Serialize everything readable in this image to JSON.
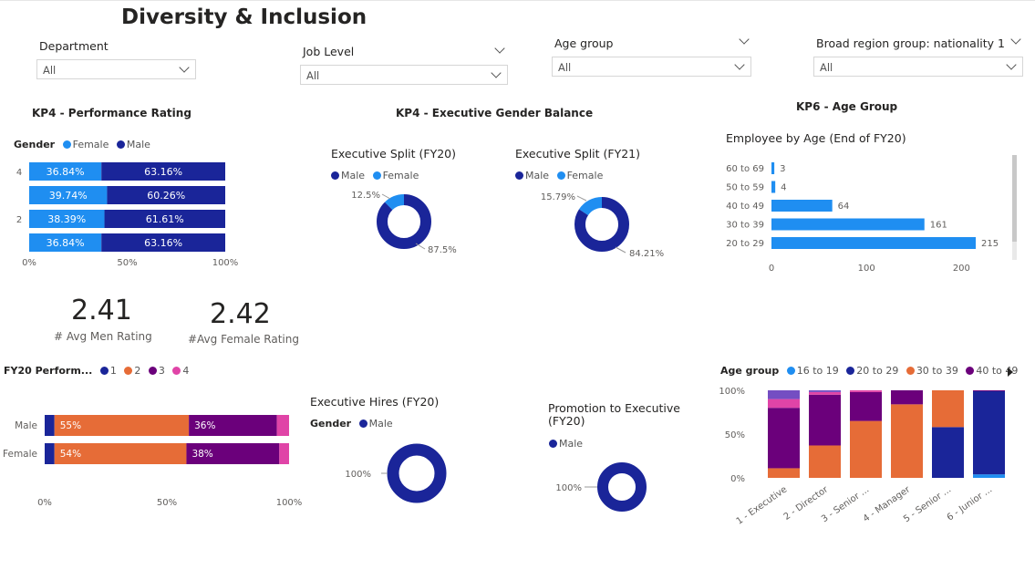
{
  "page": {
    "title": "Diversity & Inclusion"
  },
  "colors": {
    "male": "#1a2599",
    "female": "#1f8ef1",
    "orange": "#e66c37",
    "purple": "#6b007b",
    "pink": "#e044a7",
    "lavender": "#744ec2"
  },
  "slicers": [
    {
      "label": "Department",
      "value": "All"
    },
    {
      "label": "Job Level",
      "value": "All"
    },
    {
      "label": "Age group",
      "value": "All"
    },
    {
      "label": "Broad region group: nationality 1",
      "value": "All"
    }
  ],
  "perf": {
    "title": "KP4 - Performance Rating",
    "legend_title": "Gender",
    "legend": [
      "Female",
      "Male"
    ],
    "y_labels": [
      "4",
      "",
      "2",
      ""
    ],
    "x_ticks": [
      "0%",
      "50%",
      "100%"
    ]
  },
  "exec_balance": {
    "title": "KP4 - Executive Gender Balance",
    "legend": [
      "Male",
      "Female"
    ]
  },
  "age_section": {
    "title": "KP6 - Age Group"
  },
  "kpis": [
    {
      "value": "2.41",
      "label": "# Avg Men Rating"
    },
    {
      "value": "2.42",
      "label": "#Avg Female Rating"
    }
  ],
  "fy20": {
    "legend_title": "FY20 Perform...",
    "legend": [
      "1",
      "2",
      "3",
      "4"
    ],
    "x_ticks": [
      "0%",
      "50%",
      "100%"
    ]
  },
  "hires": {
    "title": "Executive Hires (FY20)",
    "legend_title": "Gender",
    "legend": [
      "Male"
    ]
  },
  "promo": {
    "title": "Promotion to Executive (FY20)",
    "legend": [
      "Male"
    ]
  },
  "agegroup": {
    "legend_title": "Age group",
    "legend": [
      "16 to 19",
      "20 to 29",
      "30 to 39",
      "40 to 49"
    ]
  },
  "chart_data": [
    {
      "type": "bar",
      "stacked": "100%",
      "orientation": "horizontal",
      "categories": [
        "4",
        "3",
        "2",
        "1"
      ],
      "series": [
        {
          "name": "Female",
          "values": [
            36.84,
            39.74,
            38.39,
            36.84
          ],
          "labels": [
            "36.84%",
            "39.74%",
            "38.39%",
            "36.84%"
          ]
        },
        {
          "name": "Male",
          "values": [
            63.16,
            60.26,
            61.61,
            63.16
          ],
          "labels": [
            "63.16%",
            "60.26%",
            "61.61%",
            "63.16%"
          ]
        }
      ],
      "xlim": [
        0,
        100
      ]
    },
    {
      "type": "pie",
      "title": "Executive Split (FY20)",
      "slices": [
        {
          "name": "Male",
          "value": 87.5,
          "label": "87.5%"
        },
        {
          "name": "Female",
          "value": 12.5,
          "label": "12.5%"
        }
      ]
    },
    {
      "type": "pie",
      "title": "Executive Split (FY21)",
      "slices": [
        {
          "name": "Male",
          "value": 84.21,
          "label": "84.21%"
        },
        {
          "name": "Female",
          "value": 15.79,
          "label": "15.79%"
        }
      ]
    },
    {
      "type": "bar",
      "orientation": "horizontal",
      "title": "Employee by Age (End of FY20)",
      "categories": [
        "60 to 69",
        "50 to 59",
        "40 to 49",
        "30 to 39",
        "20 to 29"
      ],
      "values": [
        3,
        4,
        64,
        161,
        215
      ],
      "x_ticks": [
        "0",
        "100",
        "200"
      ],
      "xlim": [
        0,
        230
      ]
    },
    {
      "type": "bar",
      "stacked": "100%",
      "orientation": "horizontal",
      "categories": [
        "Male",
        "Female"
      ],
      "series": [
        {
          "name": "1",
          "values": [
            4,
            4
          ],
          "labels": [
            "",
            ""
          ]
        },
        {
          "name": "2",
          "values": [
            55,
            54
          ],
          "labels": [
            "55%",
            "54%"
          ]
        },
        {
          "name": "3",
          "values": [
            36,
            38
          ],
          "labels": [
            "36%",
            "38%"
          ]
        },
        {
          "name": "4",
          "values": [
            5,
            4
          ],
          "labels": [
            "",
            ""
          ]
        }
      ],
      "xlim": [
        0,
        100
      ]
    },
    {
      "type": "pie",
      "title": "Executive Hires (FY20)",
      "slices": [
        {
          "name": "Male",
          "value": 100,
          "label": "100%"
        }
      ]
    },
    {
      "type": "pie",
      "title": "Promotion to Executive (FY20)",
      "slices": [
        {
          "name": "Male",
          "value": 100,
          "label": "100%"
        }
      ]
    },
    {
      "type": "bar",
      "stacked": "100%",
      "orientation": "vertical",
      "categories": [
        "1 - Executive",
        "2 - Director",
        "3 - Senior ...",
        "4 - Manager",
        "5 - Senior ...",
        "6 - Junior ..."
      ],
      "series": [
        {
          "name": "16 to 19",
          "values": [
            0,
            0,
            0,
            0,
            0,
            4
          ]
        },
        {
          "name": "20 to 29",
          "values": [
            0,
            0,
            0,
            0,
            58,
            95
          ]
        },
        {
          "name": "30 to 39",
          "values": [
            11,
            37,
            65,
            84,
            42,
            0
          ]
        },
        {
          "name": "40 to 49",
          "values": [
            69,
            58,
            33,
            16,
            0,
            1
          ]
        },
        {
          "name": "50 to 59",
          "values": [
            10,
            3,
            2,
            0,
            0,
            0
          ]
        },
        {
          "name": "60 to 69",
          "values": [
            10,
            2,
            0,
            0,
            0,
            0
          ]
        }
      ],
      "y_ticks": [
        "0%",
        "50%",
        "100%"
      ],
      "ylim": [
        0,
        100
      ]
    }
  ]
}
